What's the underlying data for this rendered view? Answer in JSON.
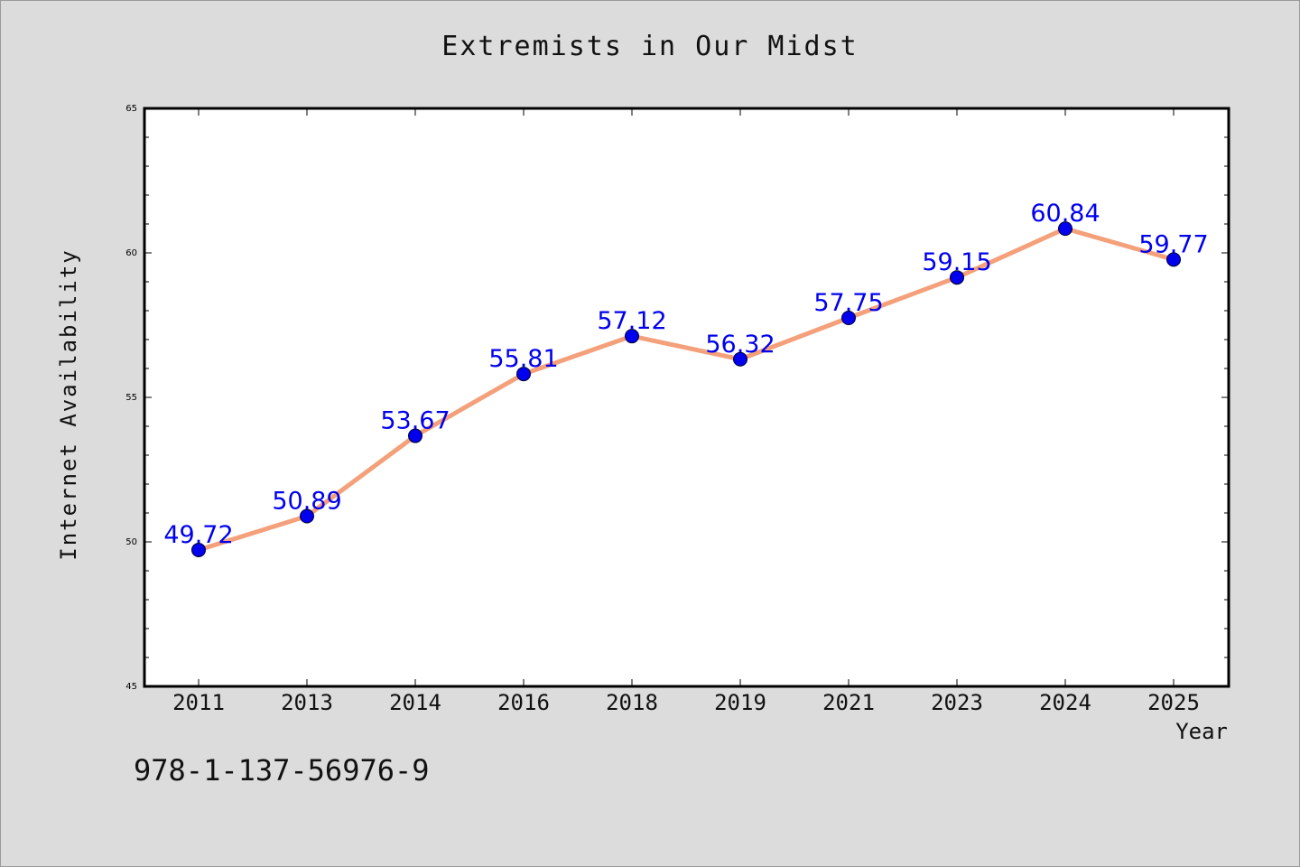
{
  "chart_data": {
    "type": "line",
    "title": "Extremists in Our Midst",
    "xlabel": "Year",
    "ylabel": "Internet Availability",
    "categories": [
      "2011",
      "2013",
      "2014",
      "2016",
      "2018",
      "2019",
      "2021",
      "2023",
      "2024",
      "2025"
    ],
    "series": [
      {
        "values": [
          49.72,
          50.89,
          53.67,
          55.81,
          57.12,
          56.32,
          57.75,
          59.15,
          60.84,
          59.77
        ],
        "line_color": "#f4a07a",
        "marker_color": "#0000ee",
        "label_color": "#0000ee"
      }
    ],
    "data_labels": [
      "49.72",
      "50.89",
      "53.67",
      "55.81",
      "57.12",
      "56.32",
      "57.75",
      "59.15",
      "60.84",
      "59.77"
    ],
    "ylim": [
      45,
      65
    ],
    "yticks": [
      "45",
      "50",
      "55",
      "60",
      "65"
    ],
    "grid": false,
    "legend": "none"
  },
  "footer": {
    "code": "978-1-137-56976-9"
  }
}
